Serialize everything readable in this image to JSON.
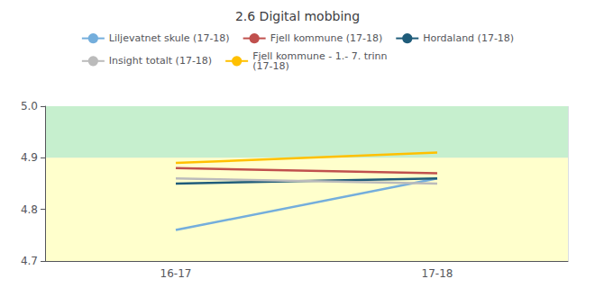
{
  "chart_data": {
    "type": "line",
    "title": "2.6 Digital mobbing",
    "categories": [
      "16-17",
      "17-18"
    ],
    "series": [
      {
        "name": "Liljevatnet skule (17-18)",
        "values": [
          4.76,
          4.86
        ],
        "color": "#74AEDC"
      },
      {
        "name": "Fjell kommune (17-18)",
        "values": [
          4.88,
          4.87
        ],
        "color": "#C0504D"
      },
      {
        "name": "Hordaland (17-18)",
        "values": [
          4.85,
          4.86
        ],
        "color": "#1F5C7A"
      },
      {
        "name": "Insight totalt (17-18)",
        "values": [
          4.86,
          4.85
        ],
        "color": "#BBBBBB"
      },
      {
        "name": "Fjell kommune - 1.- 7. trinn\n(17-18)",
        "values": [
          4.89,
          4.91
        ],
        "color": "#FFC000"
      }
    ],
    "ylim": [
      4.7,
      5.0
    ],
    "yticks": [
      4.7,
      4.8,
      4.9,
      {
        "value": 5,
        "label": "5.0"
      }
    ],
    "bands": [
      {
        "from": 4.9,
        "to": 5.02,
        "color": "#C6EFCE"
      },
      {
        "from": 4.68,
        "to": 4.9,
        "color": "#FFFFCC"
      }
    ],
    "grid": true,
    "legend": "top"
  }
}
